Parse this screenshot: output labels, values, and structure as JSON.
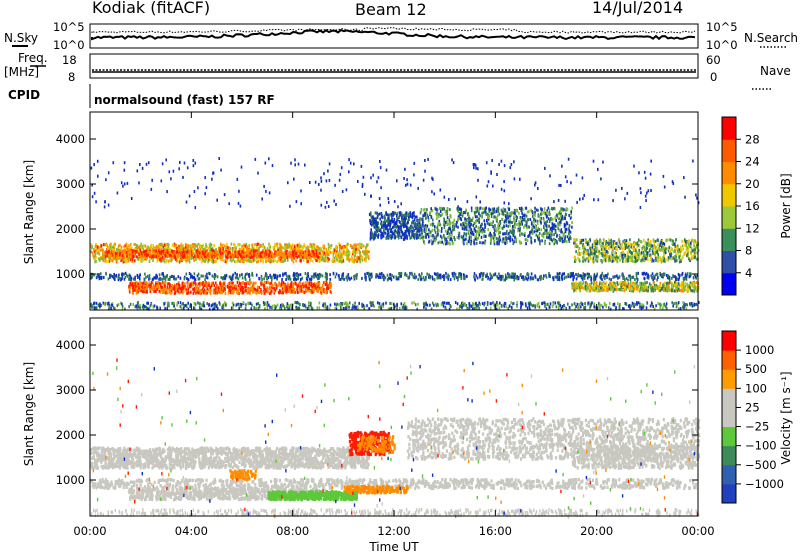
{
  "header": {
    "station": "Kodiak (fitACF)",
    "beam": "Beam 12",
    "date": "14/Jul/2014"
  },
  "params": {
    "nsky_label": "N.Sky",
    "nsearch_label": "N.Search",
    "nsky_ticks": [
      "10^5",
      "10^0"
    ],
    "nsearch_ticks": [
      "10^5",
      "10^0"
    ],
    "freq_label_1": "Freq.",
    "freq_label_2": "[MHz]",
    "freq_ticks": [
      "18",
      "8"
    ],
    "nave_label": "Nave",
    "nave_ticks": [
      "60",
      "0"
    ],
    "cpid_label": "CPID",
    "cpid_value": "normalsound (fast) 157 RF"
  },
  "chart_data": [
    {
      "type": "heatmap",
      "name": "power",
      "ylabel": "Slant Range [km]",
      "xlabel": "",
      "y_ticks": [
        "1000",
        "2000",
        "3000",
        "4000"
      ],
      "ylim": [
        200,
        4600
      ],
      "colorbar": {
        "label": "Power [dB]",
        "ticks": [
          "4",
          "8",
          "12",
          "16",
          "20",
          "24",
          "28"
        ],
        "colors": [
          "#0000ee",
          "#2f4fa8",
          "#3b8f5a",
          "#9cc93a",
          "#f0c800",
          "#ff8c00",
          "#ff5a00",
          "#ff0000"
        ],
        "range": [
          0,
          32
        ]
      },
      "bands": [
        {
          "level": "low",
          "description": "band",
          "t": [
            0,
            24
          ],
          "range_km": [
            900,
            1000
          ]
        },
        {
          "level": "mid",
          "t": [
            0,
            11
          ],
          "range_km": [
            1350,
            1650
          ]
        },
        {
          "level": "high",
          "t": [
            0.5,
            10
          ],
          "range_km": [
            1400,
            1550
          ]
        },
        {
          "level": "high",
          "t": [
            1.5,
            9
          ],
          "range_km": [
            600,
            850
          ]
        }
      ]
    },
    {
      "type": "heatmap",
      "name": "velocity",
      "ylabel": "Slant Range [km]",
      "xlabel": "Time UT",
      "x_ticks": [
        "00:00",
        "04:00",
        "08:00",
        "12:00",
        "16:00",
        "20:00",
        "00:00"
      ],
      "y_ticks": [
        "1000",
        "2000",
        "3000",
        "4000"
      ],
      "ylim": [
        200,
        4600
      ],
      "colorbar": {
        "label": "Velocity [m s⁻¹]",
        "ticks": [
          "1000",
          "500",
          "100",
          "25",
          "−25",
          "−100",
          "−500",
          "−1000"
        ],
        "colors": [
          "#2040c0",
          "#3060b0",
          "#3e8a5a",
          "#5cc83a",
          "#c8c8c0",
          "#c8c8c0",
          "#ff9c00",
          "#ff6000",
          "#ff0000"
        ],
        "range": [
          -1000,
          1000
        ]
      }
    }
  ],
  "colors": {
    "blue": "#1030c0",
    "dark_green": "#2f7a50",
    "green": "#5cc83a",
    "yellow": "#f0c800",
    "orange": "#ff8c00",
    "red": "#ff1a00",
    "gray": "#c8c8c0"
  }
}
